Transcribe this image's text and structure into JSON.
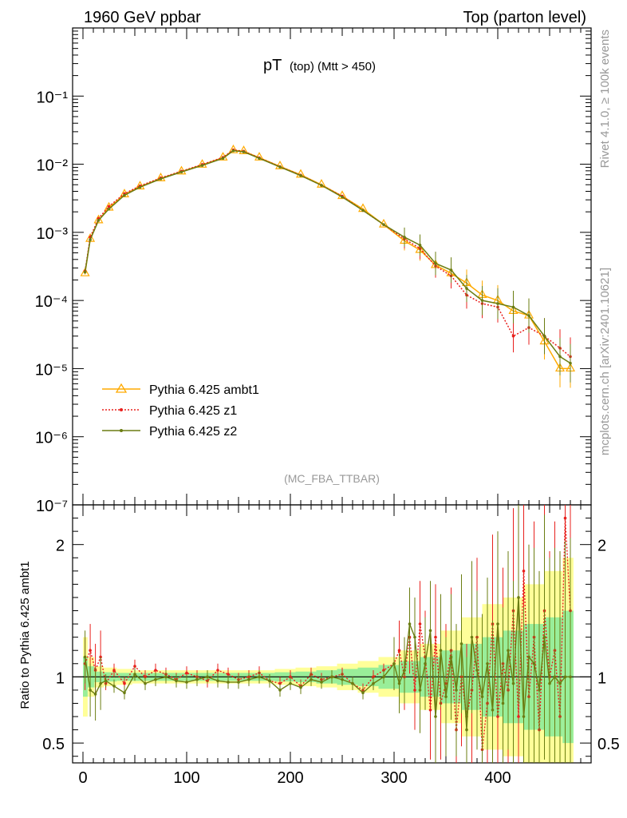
{
  "header": {
    "left": "1960 GeV ppbar",
    "right": "Top (parton level)"
  },
  "side": {
    "rivet": "Rivet 4.1.0, ≥ 100k events",
    "mcplots": "mcplots.cern.ch [arXiv:2401.10621]"
  },
  "title": {
    "main": "pT",
    "sub": "(top) (Mtt > 450)"
  },
  "watermark": "(MC_FBA_TTBAR)",
  "legend": [
    "Pythia 6.425 ambt1",
    "Pythia 6.425 z1",
    "Pythia 6.425 z2"
  ],
  "ratio_ylabel": "Ratio to Pythia 6.425 ambt1",
  "colors": {
    "ambt1": "#ffaa00",
    "z1": "#e8201d",
    "z2": "#6b7d12",
    "band_yellow": "#ffff99",
    "band_green": "#99ee99"
  },
  "chart_data": [
    {
      "type": "line",
      "yscale": "log",
      "xlim": [
        -10,
        490
      ],
      "ylim": [
        1e-07,
        1
      ],
      "yticks": [
        {
          "v": 0.1,
          "label": "10⁻¹"
        },
        {
          "v": 0.01,
          "label": "10⁻²"
        },
        {
          "v": 0.001,
          "label": "10⁻³"
        },
        {
          "v": 0.0001,
          "label": "10⁻⁴"
        },
        {
          "v": 1e-05,
          "label": "10⁻⁵"
        },
        {
          "v": 1e-06,
          "label": "10⁻⁶"
        },
        {
          "v": 1e-07,
          "label": "10⁻⁷"
        }
      ],
      "series": [
        {
          "name": "Pythia 6.425 ambt1",
          "marker": "triangle",
          "x": [
            2,
            7,
            15,
            25,
            40,
            55,
            75,
            95,
            115,
            135,
            145,
            155,
            170,
            190,
            210,
            230,
            250,
            270,
            290,
            310,
            325,
            340,
            355,
            370,
            385,
            400,
            415,
            430,
            445,
            460,
            470
          ],
          "y": [
            0.00025,
            0.0008,
            0.0015,
            0.0023,
            0.0036,
            0.0047,
            0.0062,
            0.0078,
            0.0098,
            0.0125,
            0.016,
            0.0155,
            0.0125,
            0.0093,
            0.007,
            0.005,
            0.0034,
            0.0022,
            0.0013,
            0.00075,
            0.00055,
            0.00033,
            0.00025,
            0.00018,
            0.00012,
            0.0001,
            7e-05,
            6e-05,
            2.5e-05,
            1e-05,
            1e-05
          ]
        },
        {
          "name": "Pythia 6.425 z1",
          "marker": "dot",
          "x": [
            2,
            7,
            15,
            25,
            40,
            55,
            75,
            95,
            115,
            135,
            145,
            155,
            170,
            190,
            210,
            230,
            250,
            270,
            290,
            310,
            325,
            340,
            355,
            370,
            385,
            400,
            415,
            430,
            445,
            460,
            470
          ],
          "y": [
            0.00027,
            0.00085,
            0.0016,
            0.0024,
            0.0037,
            0.0048,
            0.0063,
            0.0079,
            0.0099,
            0.0126,
            0.0162,
            0.0155,
            0.0124,
            0.0092,
            0.0069,
            0.0049,
            0.0034,
            0.0021,
            0.0013,
            0.0008,
            0.00058,
            0.00032,
            0.00023,
            0.00012,
            9e-05,
            8e-05,
            3e-05,
            4e-05,
            3e-05,
            2e-05,
            1.5e-05
          ]
        },
        {
          "name": "Pythia 6.425 z2",
          "marker": "dot",
          "x": [
            2,
            7,
            15,
            25,
            40,
            55,
            75,
            95,
            115,
            135,
            145,
            155,
            170,
            190,
            210,
            230,
            250,
            270,
            290,
            310,
            325,
            340,
            355,
            370,
            385,
            400,
            415,
            430,
            445,
            460,
            470
          ],
          "y": [
            0.00026,
            0.00078,
            0.0015,
            0.0022,
            0.0035,
            0.0046,
            0.0061,
            0.0077,
            0.0096,
            0.0122,
            0.0158,
            0.0152,
            0.0122,
            0.0091,
            0.0068,
            0.0049,
            0.0033,
            0.0021,
            0.0013,
            0.00085,
            0.00065,
            0.00035,
            0.00028,
            0.00015,
            0.0001,
            9e-05,
            8e-05,
            6e-05,
            3e-05,
            1.5e-05,
            1.2e-05
          ]
        }
      ]
    },
    {
      "type": "line",
      "title": "ratio",
      "ylabel": "Ratio to Pythia 6.425 ambt1",
      "xlabel": "",
      "xlim": [
        -10,
        490
      ],
      "ylim": [
        0.35,
        2.3
      ],
      "xticks": [
        0,
        100,
        200,
        300,
        400
      ],
      "yticks": [
        {
          "v": 0.5,
          "label": "0.5"
        },
        {
          "v": 1,
          "label": "1"
        },
        {
          "v": 2,
          "label": "2"
        }
      ],
      "band_x": [
        2,
        7,
        15,
        25,
        40,
        55,
        75,
        95,
        115,
        135,
        155,
        175,
        195,
        215,
        235,
        255,
        275,
        295,
        315,
        335,
        355,
        375,
        395,
        415,
        435,
        455,
        470
      ],
      "band_yellow_half": [
        0.3,
        0.15,
        0.08,
        0.07,
        0.06,
        0.05,
        0.05,
        0.05,
        0.05,
        0.05,
        0.05,
        0.05,
        0.06,
        0.07,
        0.08,
        0.1,
        0.12,
        0.15,
        0.2,
        0.25,
        0.35,
        0.45,
        0.55,
        0.6,
        0.7,
        0.8,
        0.9
      ],
      "band_green_half": [
        0.15,
        0.08,
        0.04,
        0.035,
        0.03,
        0.03,
        0.03,
        0.03,
        0.03,
        0.03,
        0.03,
        0.03,
        0.035,
        0.04,
        0.05,
        0.06,
        0.07,
        0.09,
        0.12,
        0.15,
        0.2,
        0.25,
        0.3,
        0.35,
        0.4,
        0.45,
        0.5
      ],
      "series": [
        {
          "name": "Pythia 6.425 z1",
          "x": [
            2,
            7,
            12,
            17,
            22,
            30,
            40,
            50,
            60,
            70,
            80,
            90,
            100,
            110,
            120,
            130,
            140,
            150,
            160,
            170,
            180,
            190,
            200,
            210,
            220,
            230,
            240,
            250,
            260,
            270,
            280,
            290,
            300,
            305,
            310,
            315,
            320,
            325,
            330,
            335,
            340,
            345,
            350,
            355,
            360,
            365,
            370,
            375,
            380,
            385,
            390,
            395,
            400,
            405,
            410,
            415,
            420,
            425,
            430,
            435,
            440,
            445,
            450,
            455,
            460,
            465,
            470
          ],
          "y": [
            1.1,
            1.2,
            1.05,
            1.15,
            0.95,
            1.05,
            0.95,
            1.08,
            1.0,
            1.05,
            1.02,
            0.98,
            1.03,
            1.0,
            0.97,
            1.05,
            1.02,
            0.98,
            1.0,
            1.03,
            0.97,
            0.95,
            1.0,
            0.93,
            1.02,
            0.98,
            1.0,
            1.02,
            0.95,
            0.9,
            1.0,
            1.05,
            1.1,
            1.2,
            1.0,
            1.3,
            0.9,
            1.4,
            1.15,
            0.75,
            1.3,
            0.8,
            0.95,
            1.2,
            0.6,
            1.0,
            0.7,
            0.9,
            1.3,
            0.45,
            0.8,
            1.4,
            0.7,
            1.1,
            0.9,
            1.5,
            0.7,
            1.8,
            0.85,
            1.3,
            0.6,
            1.5,
            1.0,
            1.2,
            0.7,
            2.2,
            1.5
          ]
        },
        {
          "name": "Pythia 6.425 z2",
          "x": [
            2,
            7,
            12,
            17,
            22,
            30,
            40,
            50,
            60,
            70,
            80,
            90,
            100,
            110,
            120,
            130,
            140,
            150,
            160,
            170,
            180,
            190,
            200,
            210,
            220,
            230,
            240,
            250,
            260,
            270,
            280,
            290,
            300,
            305,
            310,
            315,
            320,
            325,
            330,
            335,
            340,
            345,
            350,
            355,
            360,
            365,
            370,
            375,
            380,
            385,
            390,
            395,
            400,
            405,
            410,
            415,
            420,
            425,
            430,
            435,
            440,
            445,
            450,
            455,
            460,
            465,
            470
          ],
          "y": [
            1.15,
            0.9,
            0.87,
            0.95,
            0.97,
            0.93,
            0.88,
            1.02,
            0.95,
            0.98,
            1.0,
            0.97,
            0.96,
            0.98,
            1.0,
            0.97,
            0.96,
            0.96,
            0.98,
            1.0,
            0.97,
            0.9,
            0.95,
            0.92,
            0.98,
            0.96,
            1.0,
            0.98,
            0.95,
            0.88,
            0.95,
            1.0,
            1.1,
            0.95,
            1.05,
            1.4,
            1.3,
            0.9,
            1.1,
            1.35,
            0.7,
            1.2,
            0.85,
            1.15,
            0.9,
            1.25,
            0.6,
            1.3,
            1.05,
            0.85,
            1.1,
            0.75,
            1.4,
            0.8,
            1.2,
            0.95,
            1.6,
            0.7,
            1.15,
            1.1,
            0.9,
            1.3,
            0.95,
            1.0,
            0.95,
            1.0,
            1.0
          ]
        }
      ]
    }
  ]
}
